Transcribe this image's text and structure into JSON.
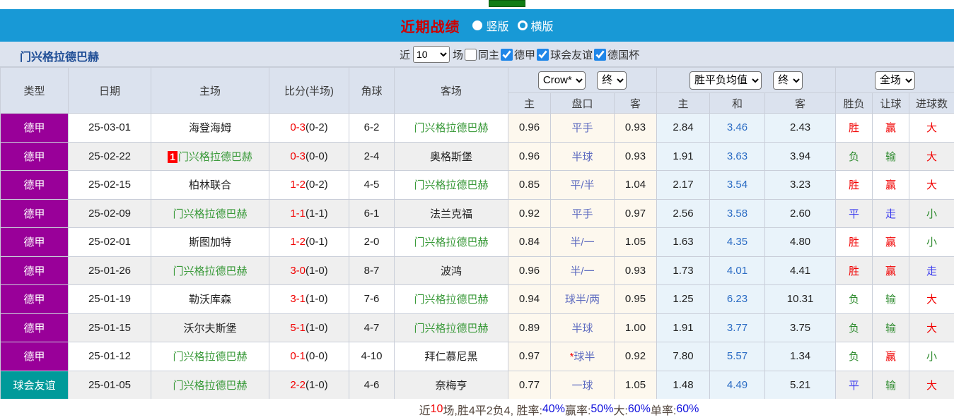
{
  "colors": {
    "titlebar_blue": "#1899d6",
    "league_purple": "#990099",
    "friendly_teal": "#009a9a",
    "team_green": "#3a9a3a",
    "win_red": "#f10000",
    "lose_green": "#2e8b2e",
    "draw_blue": "#3b3bee",
    "checkbox_blue": "#1f86e8"
  },
  "titlebar": {
    "title": "近期战绩",
    "radio_vertical": "竖版",
    "radio_horizontal": "横版"
  },
  "filterbar": {
    "team_name": "门兴格拉德巴赫",
    "recent_label": "近",
    "count_value": "10",
    "matches_label": "场",
    "same_home_label": "同主",
    "league_options": [
      "德甲",
      "球会友谊",
      "德国杯"
    ]
  },
  "table": {
    "selects": {
      "company": "Crow*",
      "company_time": "终",
      "avg": "胜平负均值",
      "avg_time": "终",
      "scope": "全场"
    },
    "headers": {
      "type": "类型",
      "date": "日期",
      "home": "主场",
      "score": "比分(半场)",
      "corner": "角球",
      "away": "客场",
      "odds_home": "主",
      "handicap": "盘口",
      "odds_away": "客",
      "avg_home": "主",
      "avg_draw": "和",
      "avg_away": "客",
      "result_wdl": "胜负",
      "result_handicap": "让球",
      "result_goals": "进球数"
    },
    "rows": [
      {
        "type": "德甲",
        "type_style": "purple",
        "date": "25-03-01",
        "home": "海登海姆",
        "home_badge": "",
        "home_is_team": false,
        "score": "0-3",
        "half": "(0-2)",
        "corner": "6-2",
        "away": "门兴格拉德巴赫",
        "away_is_team": true,
        "odds_home": "0.96",
        "handicap": "平手",
        "handicap_star": false,
        "odds_away": "0.93",
        "avg_home": "2.84",
        "avg_draw": "3.46",
        "avg_away": "2.43",
        "res_wdl": "胜",
        "res_wdl_color": "red",
        "res_handicap": "赢",
        "res_handicap_color": "red",
        "res_goals": "大",
        "res_goals_color": "red"
      },
      {
        "type": "德甲",
        "type_style": "purple",
        "date": "25-02-22",
        "home": "门兴格拉德巴赫",
        "home_badge": "1",
        "home_is_team": true,
        "score": "0-3",
        "half": "(0-0)",
        "corner": "2-4",
        "away": "奥格斯堡",
        "away_is_team": false,
        "odds_home": "0.96",
        "handicap": "半球",
        "handicap_star": false,
        "odds_away": "0.93",
        "avg_home": "1.91",
        "avg_draw": "3.63",
        "avg_away": "3.94",
        "res_wdl": "负",
        "res_wdl_color": "green",
        "res_handicap": "输",
        "res_handicap_color": "green",
        "res_goals": "大",
        "res_goals_color": "red"
      },
      {
        "type": "德甲",
        "type_style": "purple",
        "date": "25-02-15",
        "home": "柏林联合",
        "home_badge": "",
        "home_is_team": false,
        "score": "1-2",
        "half": "(0-2)",
        "corner": "4-5",
        "away": "门兴格拉德巴赫",
        "away_is_team": true,
        "odds_home": "0.85",
        "handicap": "平/半",
        "handicap_star": false,
        "odds_away": "1.04",
        "avg_home": "2.17",
        "avg_draw": "3.54",
        "avg_away": "3.23",
        "res_wdl": "胜",
        "res_wdl_color": "red",
        "res_handicap": "赢",
        "res_handicap_color": "red",
        "res_goals": "大",
        "res_goals_color": "red"
      },
      {
        "type": "德甲",
        "type_style": "purple",
        "date": "25-02-09",
        "home": "门兴格拉德巴赫",
        "home_badge": "",
        "home_is_team": true,
        "score": "1-1",
        "half": "(1-1)",
        "corner": "6-1",
        "away": "法兰克福",
        "away_is_team": false,
        "odds_home": "0.92",
        "handicap": "平手",
        "handicap_star": false,
        "odds_away": "0.97",
        "avg_home": "2.56",
        "avg_draw": "3.58",
        "avg_away": "2.60",
        "res_wdl": "平",
        "res_wdl_color": "blue",
        "res_handicap": "走",
        "res_handicap_color": "blue",
        "res_goals": "小",
        "res_goals_color": "green"
      },
      {
        "type": "德甲",
        "type_style": "purple",
        "date": "25-02-01",
        "home": "斯图加特",
        "home_badge": "",
        "home_is_team": false,
        "score": "1-2",
        "half": "(0-1)",
        "corner": "2-0",
        "away": "门兴格拉德巴赫",
        "away_is_team": true,
        "odds_home": "0.84",
        "handicap": "半/一",
        "handicap_star": false,
        "odds_away": "1.05",
        "avg_home": "1.63",
        "avg_draw": "4.35",
        "avg_away": "4.80",
        "res_wdl": "胜",
        "res_wdl_color": "red",
        "res_handicap": "赢",
        "res_handicap_color": "red",
        "res_goals": "小",
        "res_goals_color": "green"
      },
      {
        "type": "德甲",
        "type_style": "purple",
        "date": "25-01-26",
        "home": "门兴格拉德巴赫",
        "home_badge": "",
        "home_is_team": true,
        "score": "3-0",
        "half": "(1-0)",
        "corner": "8-7",
        "away": "波鸿",
        "away_is_team": false,
        "odds_home": "0.96",
        "handicap": "半/一",
        "handicap_star": false,
        "odds_away": "0.93",
        "avg_home": "1.73",
        "avg_draw": "4.01",
        "avg_away": "4.41",
        "res_wdl": "胜",
        "res_wdl_color": "red",
        "res_handicap": "赢",
        "res_handicap_color": "red",
        "res_goals": "走",
        "res_goals_color": "blue"
      },
      {
        "type": "德甲",
        "type_style": "purple",
        "date": "25-01-19",
        "home": "勒沃库森",
        "home_badge": "",
        "home_is_team": false,
        "score": "3-1",
        "half": "(1-0)",
        "corner": "7-6",
        "away": "门兴格拉德巴赫",
        "away_is_team": true,
        "odds_home": "0.94",
        "handicap": "球半/两",
        "handicap_star": false,
        "odds_away": "0.95",
        "avg_home": "1.25",
        "avg_draw": "6.23",
        "avg_away": "10.31",
        "res_wdl": "负",
        "res_wdl_color": "green",
        "res_handicap": "输",
        "res_handicap_color": "green",
        "res_goals": "大",
        "res_goals_color": "red"
      },
      {
        "type": "德甲",
        "type_style": "purple",
        "date": "25-01-15",
        "home": "沃尔夫斯堡",
        "home_badge": "",
        "home_is_team": false,
        "score": "5-1",
        "half": "(1-0)",
        "corner": "4-7",
        "away": "门兴格拉德巴赫",
        "away_is_team": true,
        "odds_home": "0.89",
        "handicap": "半球",
        "handicap_star": false,
        "odds_away": "1.00",
        "avg_home": "1.91",
        "avg_draw": "3.77",
        "avg_away": "3.75",
        "res_wdl": "负",
        "res_wdl_color": "green",
        "res_handicap": "输",
        "res_handicap_color": "green",
        "res_goals": "大",
        "res_goals_color": "red"
      },
      {
        "type": "德甲",
        "type_style": "purple",
        "date": "25-01-12",
        "home": "门兴格拉德巴赫",
        "home_badge": "",
        "home_is_team": true,
        "score": "0-1",
        "half": "(0-0)",
        "corner": "4-10",
        "away": "拜仁慕尼黑",
        "away_is_team": false,
        "odds_home": "0.97",
        "handicap": "球半",
        "handicap_star": true,
        "odds_away": "0.92",
        "avg_home": "7.80",
        "avg_draw": "5.57",
        "avg_away": "1.34",
        "res_wdl": "负",
        "res_wdl_color": "green",
        "res_handicap": "赢",
        "res_handicap_color": "red",
        "res_goals": "小",
        "res_goals_color": "green"
      },
      {
        "type": "球会友谊",
        "type_style": "teal",
        "date": "25-01-05",
        "home": "门兴格拉德巴赫",
        "home_badge": "",
        "home_is_team": true,
        "score": "2-2",
        "half": "(1-0)",
        "corner": "4-6",
        "away": "奈梅亨",
        "away_is_team": false,
        "odds_home": "0.77",
        "handicap": "一球",
        "handicap_star": false,
        "odds_away": "1.05",
        "avg_home": "1.48",
        "avg_draw": "4.49",
        "avg_away": "5.21",
        "res_wdl": "平",
        "res_wdl_color": "blue",
        "res_handicap": "输",
        "res_handicap_color": "green",
        "res_goals": "大",
        "res_goals_color": "red"
      }
    ]
  },
  "summary": {
    "segments": [
      {
        "text": "近",
        "color": "dark"
      },
      {
        "text": "10",
        "color": "red"
      },
      {
        "text": "场,胜4平2负4, 胜率:",
        "color": "dark"
      },
      {
        "text": "40%",
        "color": "blue"
      },
      {
        "text": " 赢率:",
        "color": "dark"
      },
      {
        "text": "50%",
        "color": "blue"
      },
      {
        "text": " 大:",
        "color": "dark"
      },
      {
        "text": "60%",
        "color": "blue"
      },
      {
        "text": " 单率:",
        "color": "dark"
      },
      {
        "text": "60%",
        "color": "blue"
      }
    ]
  }
}
